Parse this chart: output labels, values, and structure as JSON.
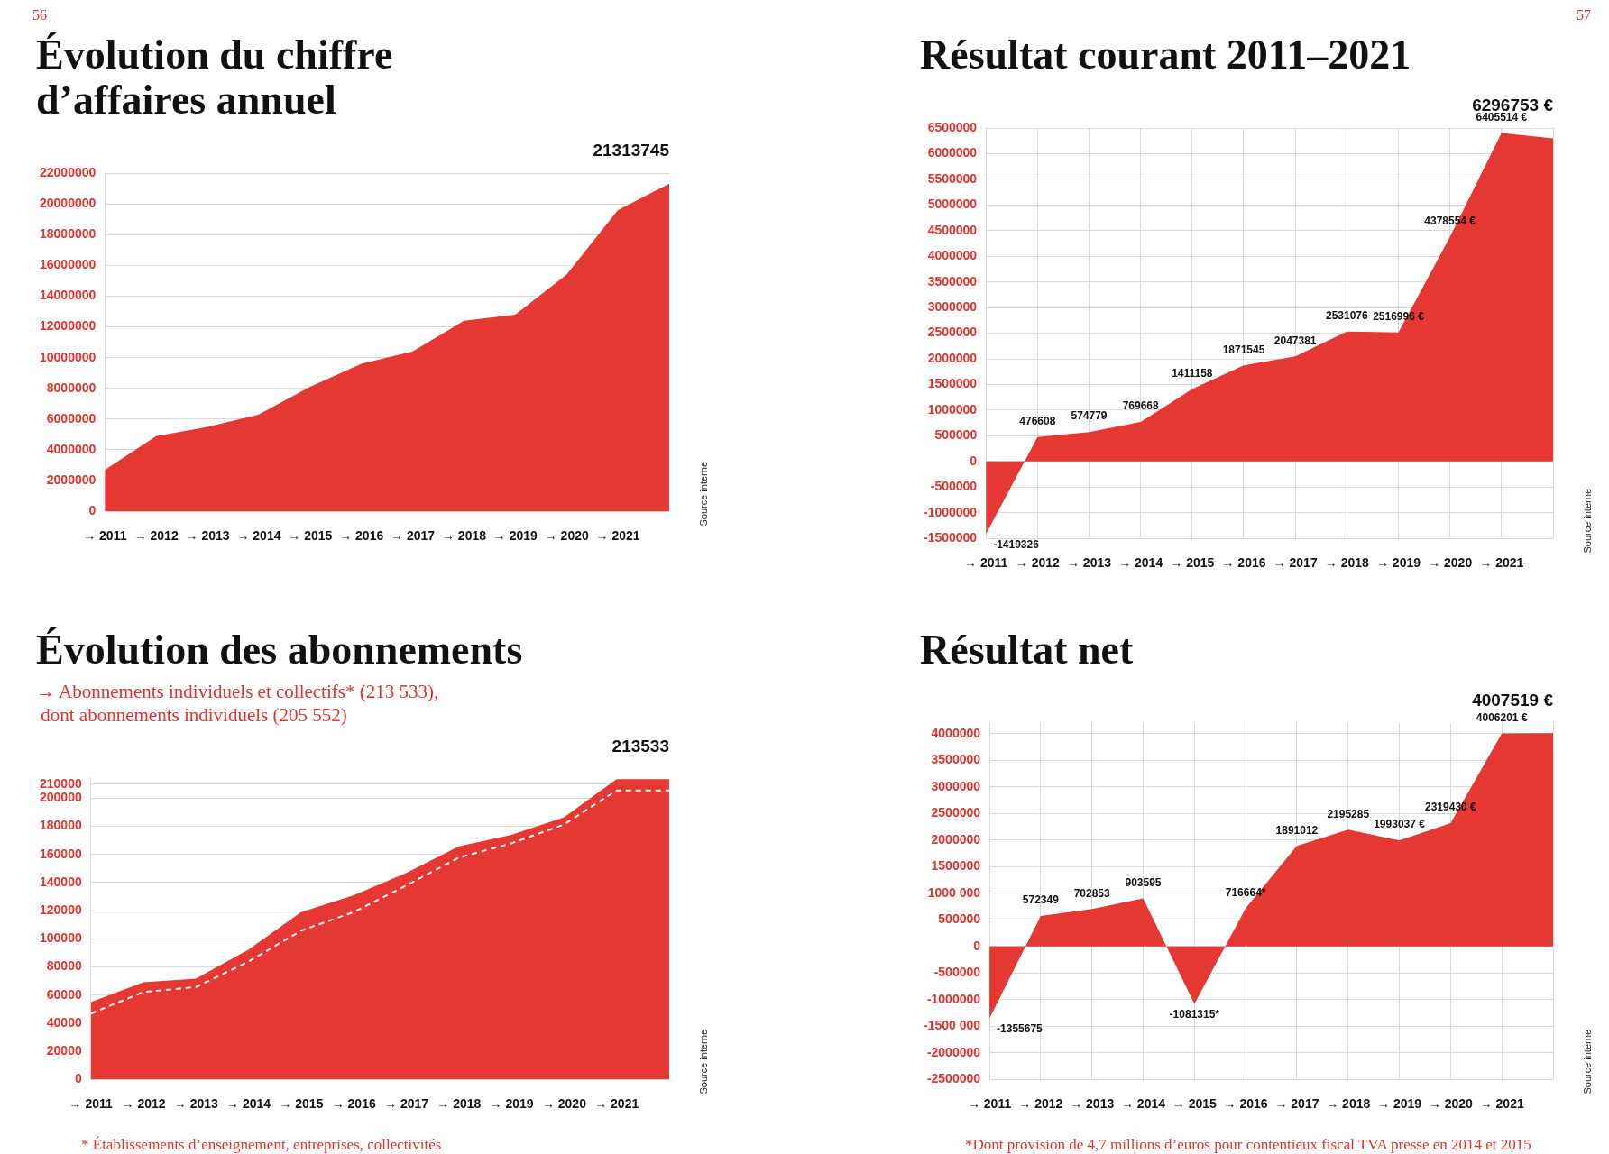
{
  "chart_data": [
    {
      "type": "area",
      "title": "Évolution du chiffre\nd’affaires annuel",
      "categories": [
        "→ 2011",
        "→ 2012",
        "→ 2013",
        "→ 2014",
        "→ 2015",
        "→ 2016",
        "→ 2017",
        "→ 2018",
        "→ 2019",
        "→ 2020",
        "→ 2021",
        null
      ],
      "values": [
        2700000,
        4900000,
        5500000,
        6300000,
        8100000,
        9600000,
        10400000,
        12400000,
        12800000,
        15400000,
        19600000,
        21313745
      ],
      "color": "#e53832",
      "value_labels": [
        null,
        null,
        null,
        null,
        null,
        null,
        null,
        null,
        null,
        null,
        null,
        "21313745"
      ],
      "ylim": [
        0,
        22000000
      ],
      "yticks": [
        0,
        2000000,
        4000000,
        6000000,
        8000000,
        10000000,
        12000000,
        14000000,
        16000000,
        18000000,
        20000000,
        22000000
      ],
      "grid": "y",
      "annotations": [
        "56",
        "Source interne"
      ]
    },
    {
      "type": "area",
      "title": "Résultat courant 2011–2021",
      "categories": [
        "→ 2011",
        "→ 2012",
        "→ 2013",
        "→ 2014",
        "→ 2015",
        "→ 2016",
        "→ 2017",
        "→ 2018",
        "→ 2019",
        "→ 2020",
        "→ 2021",
        null
      ],
      "values": [
        -1419326,
        476608,
        574779,
        769668,
        1411158,
        1871545,
        2047381,
        2531076,
        2516996,
        4378554,
        6405514,
        6296753
      ],
      "color": "#e53832",
      "value_labels": [
        "-1419326",
        "476608",
        "574779",
        "769668",
        "1411158",
        "1871545",
        "2047381",
        "2531076",
        "2516996 €",
        "4378554 €",
        "6405514 €",
        "6296753 €"
      ],
      "ylim": [
        -1500000,
        6500000
      ],
      "yticks": [
        -1500000,
        -1000000,
        -500000,
        0,
        500000,
        1000000,
        1500000,
        2000000,
        2500000,
        3000000,
        3500000,
        4000000,
        4500000,
        5000000,
        5500000,
        6000000,
        6500000
      ],
      "grid": true,
      "annotations": [
        "57",
        "Source interne"
      ]
    },
    {
      "type": "area",
      "title": "Évolution des abonnements",
      "subtitle": "→ Abonnements individuels et collectifs* (213 533),\n dont abonnements individuels (205 552)",
      "categories": [
        "→ 2011",
        "→ 2012",
        "→ 2013",
        "→ 2014",
        "→ 2015",
        "→ 2016",
        "→ 2017",
        "→ 2018",
        "→ 2019",
        "→ 2020",
        "→ 2021",
        null
      ],
      "series": [
        {
          "type": "area",
          "color": "#e53832",
          "values": [
            55000,
            69000,
            71600,
            92400,
            119000,
            130900,
            146800,
            165700,
            174000,
            186500,
            213533,
            213533
          ],
          "value_labels": [
            null,
            null,
            null,
            null,
            null,
            null,
            null,
            null,
            null,
            null,
            null,
            "213533"
          ]
        },
        {
          "type": "line",
          "color": "#ffffff",
          "line_style": "dashed",
          "values": [
            46800,
            62100,
            65700,
            83800,
            105800,
            119000,
            137900,
            157800,
            167900,
            181300,
            205552,
            205552
          ]
        }
      ],
      "ylim": [
        0,
        215000
      ],
      "yticks": [
        0,
        20000,
        40000,
        60000,
        80000,
        100000,
        120000,
        140000,
        160000,
        180000,
        200000,
        210000
      ],
      "grid": "y",
      "annotations": [
        "Source interne",
        "* Établissements d’enseignement, entreprises, collectivités"
      ]
    },
    {
      "type": "area",
      "title": "Résultat net",
      "categories": [
        "→ 2011",
        "→ 2012",
        "→ 2013",
        "→ 2014",
        "→ 2015",
        "→ 2016",
        "→ 2017",
        "→ 2018",
        "→ 2019",
        "→ 2020",
        "→ 2021",
        null
      ],
      "values": [
        -1355675,
        572349,
        702853,
        903595,
        -1081315,
        716664,
        1891012,
        2195285,
        1993037,
        2319430,
        4006201,
        4007519
      ],
      "color": "#e53832",
      "value_labels": [
        "-1355675",
        "572349",
        "702853",
        "903595",
        "-1081315*",
        "716664*",
        "1891012",
        "2195285",
        "1993037 €",
        "2319430 €",
        "4006201 €",
        "4007519 €"
      ],
      "ylim": [
        -2500000,
        4200000
      ],
      "yticks": [
        -2500000,
        -2000000,
        {
          "value": -1500000,
          "label": "-1500 000"
        },
        -1000000,
        -500000,
        0,
        500000,
        {
          "value": 1000000,
          "label": "1000 000"
        },
        1500000,
        2000000,
        2500000,
        3000000,
        3500000,
        4000000
      ],
      "grid": true,
      "annotations": [
        "Source interne",
        "*Dont provision de 4,7 millions d’euros pour contentieux fiscal TVA presse en 2014 et 2015"
      ]
    }
  ]
}
